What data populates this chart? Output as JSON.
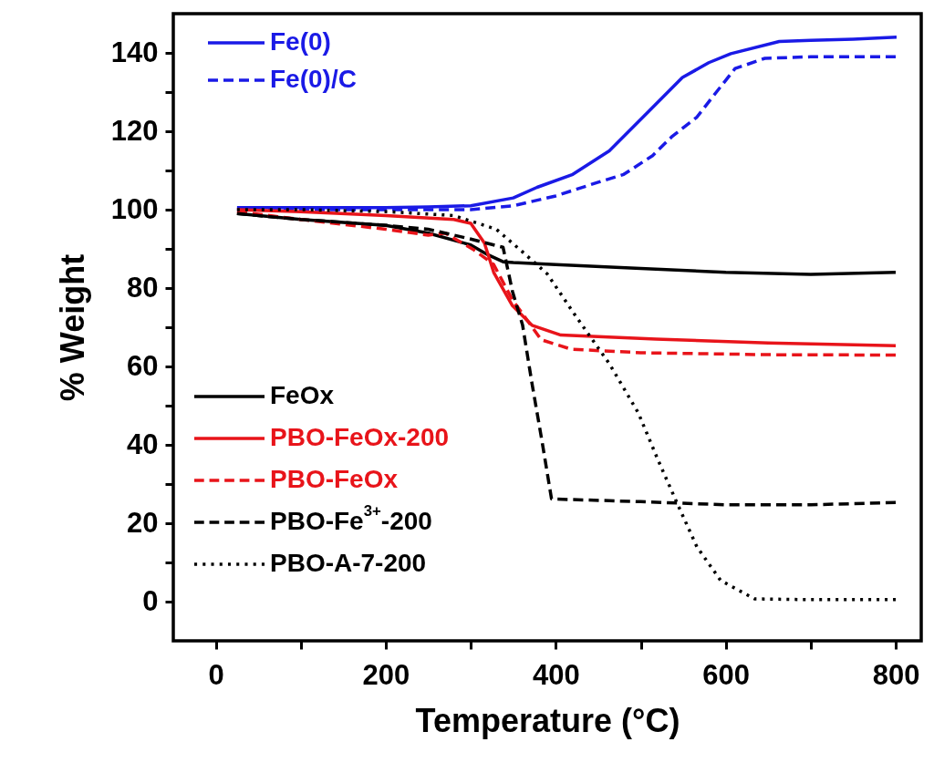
{
  "chart_data": {
    "type": "line",
    "xlabel": "Temperature (°C)",
    "ylabel": "% Weight",
    "xlim": [
      -50,
      830
    ],
    "ylim": [
      -10,
      150
    ],
    "xticks": [
      0,
      {
        "value": 100,
        "label": null
      },
      200,
      {
        "value": 300,
        "label": null
      },
      400,
      {
        "value": 500,
        "label": null
      },
      600,
      {
        "value": 700,
        "label": null
      },
      800
    ],
    "yticks": [
      0,
      {
        "value": 10,
        "label": null
      },
      20,
      {
        "value": 30,
        "label": null
      },
      40,
      {
        "value": 50,
        "label": null
      },
      60,
      {
        "value": 70,
        "label": null
      },
      80,
      {
        "value": 90,
        "label": null
      },
      100,
      {
        "value": 110,
        "label": null
      },
      120,
      {
        "value": 130,
        "label": null
      },
      140
    ],
    "grid": false,
    "legend": "left",
    "marker": "none",
    "series": [
      {
        "name": "Fe(0)",
        "color": "#1a1ae6",
        "line_style": "solid",
        "x": [
          25,
          100,
          200,
          250,
          300,
          350,
          378,
          420,
          463,
          509,
          549,
          580,
          606,
          663,
          700,
          750,
          801
        ],
        "values": [
          100.5,
          100.5,
          100.5,
          100.7,
          101,
          103,
          105.7,
          109,
          115,
          125,
          133.7,
          137.5,
          139.8,
          142.9,
          143.2,
          143.5,
          144
        ]
      },
      {
        "name": "Fe(0)/C",
        "color": "#1a1ae6",
        "line_style": "dashed",
        "x": [
          25,
          100,
          200,
          300,
          350,
          400,
          450,
          480,
          514,
          537,
          566,
          589,
          611,
          646,
          700,
          800
        ],
        "values": [
          100,
          100,
          100,
          100,
          101,
          103.5,
          107,
          109,
          113.8,
          118.7,
          123.6,
          130,
          136,
          138.6,
          139,
          139
        ]
      },
      {
        "name": "FeOx",
        "color": "#000000",
        "line_style": "solid",
        "x": [
          25,
          100,
          200,
          250,
          300,
          320,
          338,
          350,
          400,
          500,
          600,
          700,
          800
        ],
        "values": [
          99,
          97.5,
          96,
          94,
          91,
          88.5,
          86.7,
          86.5,
          86,
          85,
          84,
          83.5,
          84
        ]
      },
      {
        "name": "PBO-FeOx-200",
        "color": "#e8141a",
        "line_style": "solid",
        "x": [
          25,
          100,
          200,
          280,
          300,
          316,
          327,
          349,
          372,
          406,
          518,
          650,
          800
        ],
        "values": [
          100,
          99.5,
          98.5,
          97.5,
          96.5,
          91.5,
          84,
          75.5,
          70.5,
          68,
          67,
          66,
          65.3
        ]
      },
      {
        "name": "PBO-FeOx",
        "color": "#e8141a",
        "line_style": "dashed",
        "x": [
          25,
          100,
          200,
          250,
          270,
          304,
          327,
          349,
          383,
          418,
          500,
          650,
          800
        ],
        "values": [
          99.5,
          97.5,
          95,
          93.5,
          94,
          89.7,
          86,
          77,
          66.8,
          64.4,
          63.5,
          63,
          62.9
        ]
      },
      {
        "name": "PBO-Fe$^{3+}$-200",
        "color": "#000000",
        "line_style": "dashed",
        "x": [
          25,
          100,
          200,
          250,
          300,
          338,
          349,
          361,
          372,
          384,
          395,
          500,
          600,
          700,
          800
        ],
        "values": [
          99,
          97.5,
          96,
          95,
          92.5,
          90.4,
          79.2,
          70.5,
          55.7,
          40.7,
          26.2,
          25.5,
          24.7,
          24.7,
          25.3
        ]
      },
      {
        "name": "PBO-A-7-200",
        "color": "#000000",
        "line_style": "dotted",
        "x": [
          25,
          100,
          200,
          280,
          330,
          361,
          390,
          423,
          463,
          497,
          520,
          543,
          566,
          594,
          634,
          700,
          800
        ],
        "values": [
          100,
          100,
          99.5,
          98.5,
          95,
          89.2,
          83.6,
          73,
          60.7,
          48.2,
          36.3,
          25,
          14,
          5.4,
          0.7,
          0.5,
          0.5
        ]
      }
    ]
  }
}
